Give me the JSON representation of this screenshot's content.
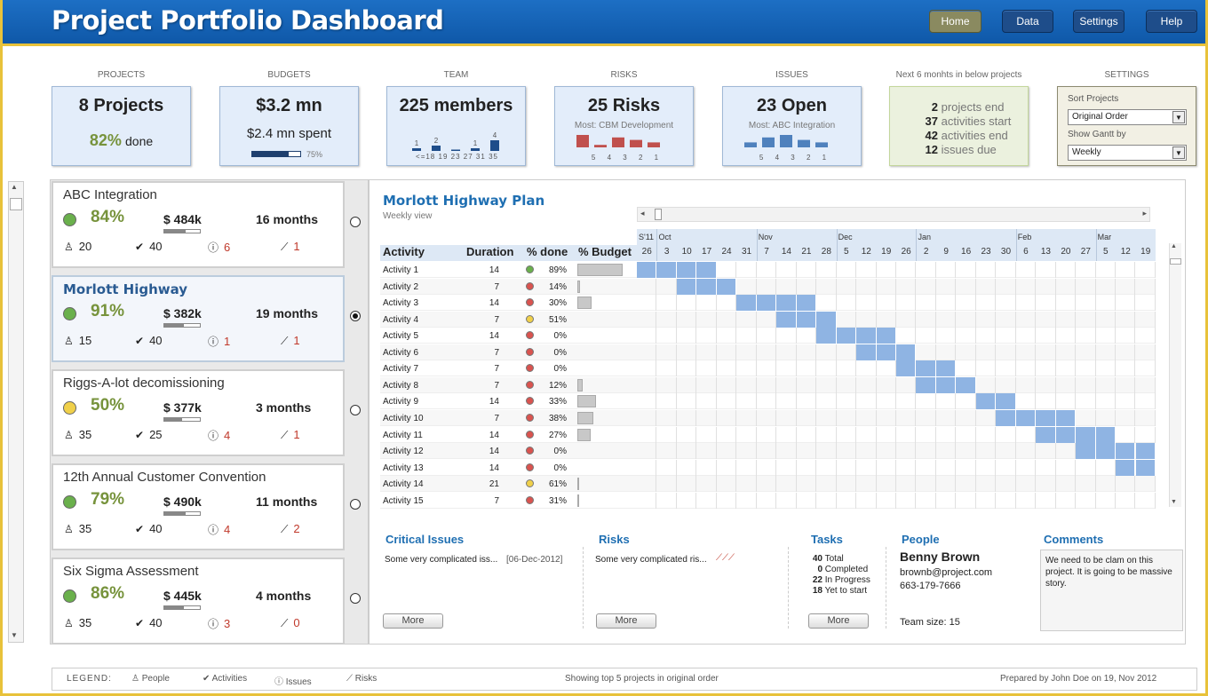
{
  "header": {
    "title": "Project Portfolio Dashboard",
    "nav": [
      "Home",
      "Data",
      "Settings",
      "Help"
    ]
  },
  "kpis": {
    "projects": {
      "label": "PROJECTS",
      "big": "8 Projects",
      "pct": "82%",
      "pct_suffix": "done"
    },
    "budgets": {
      "label": "BUDGETS",
      "big": "$3.2 mn",
      "sub": "$2.4 mn spent",
      "bar_pct": "75%",
      "bar_fraction": 0.75
    },
    "team": {
      "label": "TEAM",
      "big": "225 members",
      "bar_top": [
        "1",
        "2",
        "1",
        "4"
      ],
      "bar_bottom": [
        "<=18",
        "19",
        "23",
        "27",
        "31",
        "35"
      ],
      "values": [
        1,
        2,
        0,
        1,
        4
      ]
    },
    "risks": {
      "label": "RISKS",
      "big": "25 Risks",
      "most": "Most: CBM Development",
      "nums": [
        "5",
        "4",
        "3",
        "2",
        "1"
      ],
      "values": [
        5,
        1,
        4,
        3,
        2
      ]
    },
    "issues": {
      "label": "ISSUES",
      "big": "23 Open",
      "most": "Most: ABC Integration",
      "nums": [
        "5",
        "4",
        "3",
        "2",
        "1"
      ],
      "values": [
        2,
        4,
        5,
        3,
        2
      ]
    },
    "next": {
      "label": "Next 6 monhts in below projects",
      "lines": [
        {
          "n": "2",
          "t": "projects end"
        },
        {
          "n": "37",
          "t": "activities start"
        },
        {
          "n": "42",
          "t": "activities end"
        },
        {
          "n": "12",
          "t": "issues due"
        }
      ]
    },
    "settings": {
      "label": "SETTINGS",
      "sort_label": "Sort Projects",
      "sort_value": "Original Order",
      "gantt_label": "Show Gantt by",
      "gantt_value": "Weekly"
    }
  },
  "projects": [
    {
      "name": "ABC Integration",
      "status": "green",
      "pct": "84%",
      "budget": "$ 484k",
      "budget_fill": 0.6,
      "duration": "16 months",
      "people": "20",
      "activities": "40",
      "issues": "6",
      "risks": "1",
      "selected": false
    },
    {
      "name": "Morlott Highway",
      "status": "green",
      "pct": "91%",
      "budget": "$ 382k",
      "budget_fill": 0.55,
      "duration": "19 months",
      "people": "15",
      "activities": "40",
      "issues": "1",
      "risks": "1",
      "selected": true
    },
    {
      "name": "Riggs-A-lot decomissioning",
      "status": "yellow",
      "pct": "50%",
      "budget": "$ 377k",
      "budget_fill": 0.5,
      "duration": "3 months",
      "people": "35",
      "activities": "25",
      "issues": "4",
      "risks": "1",
      "selected": false
    },
    {
      "name": "12th Annual Customer Convention",
      "status": "green",
      "pct": "79%",
      "budget": "$ 490k",
      "budget_fill": 0.6,
      "duration": "11 months",
      "people": "35",
      "activities": "40",
      "issues": "4",
      "risks": "2",
      "selected": false
    },
    {
      "name": "Six Sigma Assessment",
      "status": "green",
      "pct": "86%",
      "budget": "$ 445k",
      "budget_fill": 0.55,
      "duration": "4 months",
      "people": "35",
      "activities": "40",
      "issues": "3",
      "risks": "0",
      "selected": false
    }
  ],
  "gantt": {
    "title": "Morlott Highway Plan",
    "subtitle": "Weekly view",
    "headers": {
      "activity": "Activity",
      "duration": "Duration",
      "done": "% done",
      "budget": "% Budget"
    },
    "months": [
      {
        "label": "S'11",
        "col": 0
      },
      {
        "label": "Oct",
        "col": 1
      },
      {
        "label": "Nov",
        "col": 6
      },
      {
        "label": "Dec",
        "col": 10
      },
      {
        "label": "Jan",
        "col": 14
      },
      {
        "label": "Feb",
        "col": 19
      },
      {
        "label": "Mar",
        "col": 23
      }
    ],
    "weeks": [
      "26",
      "3",
      "10",
      "17",
      "24",
      "31",
      "7",
      "14",
      "21",
      "28",
      "5",
      "12",
      "19",
      "26",
      "2",
      "9",
      "16",
      "23",
      "30",
      "6",
      "13",
      "20",
      "27",
      "5",
      "12",
      "19"
    ],
    "activities": [
      {
        "name": "Activity 1",
        "dur": "14",
        "status": "green",
        "done": "89%",
        "budget": 0.95,
        "start": 0,
        "len": 4
      },
      {
        "name": "Activity 2",
        "dur": "7",
        "status": "red",
        "done": "14%",
        "budget": 0.05,
        "start": 2,
        "len": 3
      },
      {
        "name": "Activity 3",
        "dur": "14",
        "status": "red",
        "done": "30%",
        "budget": 0.3,
        "start": 5,
        "len": 4
      },
      {
        "name": "Activity 4",
        "dur": "7",
        "status": "yellow",
        "done": "51%",
        "budget": 0,
        "start": 7,
        "len": 3
      },
      {
        "name": "Activity 5",
        "dur": "14",
        "status": "red",
        "done": "0%",
        "budget": 0,
        "start": 9,
        "len": 4
      },
      {
        "name": "Activity 6",
        "dur": "7",
        "status": "red",
        "done": "0%",
        "budget": 0,
        "start": 11,
        "len": 3
      },
      {
        "name": "Activity 7",
        "dur": "7",
        "status": "red",
        "done": "0%",
        "budget": 0,
        "start": 13,
        "len": 3
      },
      {
        "name": "Activity 8",
        "dur": "7",
        "status": "red",
        "done": "12%",
        "budget": 0.12,
        "start": 14,
        "len": 3
      },
      {
        "name": "Activity 9",
        "dur": "14",
        "status": "red",
        "done": "33%",
        "budget": 0.38,
        "start": 17,
        "len": 2
      },
      {
        "name": "Activity 10",
        "dur": "7",
        "status": "red",
        "done": "38%",
        "budget": 0.33,
        "start": 18,
        "len": 4
      },
      {
        "name": "Activity 11",
        "dur": "14",
        "status": "red",
        "done": "27%",
        "budget": 0.27,
        "start": 20,
        "len": 4
      },
      {
        "name": "Activity 12",
        "dur": "14",
        "status": "red",
        "done": "0%",
        "budget": 0,
        "start": 22,
        "len": 4
      },
      {
        "name": "Activity 13",
        "dur": "14",
        "status": "red",
        "done": "0%",
        "budget": 0,
        "start": 24,
        "len": 2
      },
      {
        "name": "Activity 14",
        "dur": "21",
        "status": "yellow",
        "done": "61%",
        "budget": 0.03,
        "start": 26,
        "len": 0
      },
      {
        "name": "Activity 15",
        "dur": "7",
        "status": "red",
        "done": "31%",
        "budget": 0.03,
        "start": 26,
        "len": 0
      }
    ]
  },
  "bottom": {
    "critical": {
      "title": "Critical Issues",
      "text": "Some very complicated iss...",
      "date": "[06-Dec-2012]",
      "more": "More"
    },
    "risks": {
      "title": "Risks",
      "text": "Some very complicated ris...",
      "more": "More"
    },
    "tasks": {
      "title": "Tasks",
      "rows": [
        {
          "n": "40",
          "t": "Total"
        },
        {
          "n": "0",
          "t": "Completed"
        },
        {
          "n": "22",
          "t": "In Progress"
        },
        {
          "n": "18",
          "t": "Yet to start"
        }
      ],
      "more": "More"
    },
    "people": {
      "title": "People",
      "name": "Benny Brown",
      "email": "brownb@project.com",
      "phone": "663-179-7666",
      "team": "Team size: 15"
    },
    "comments": {
      "title": "Comments",
      "text": "We need to be clam on this project. It is going to be massive story."
    }
  },
  "footer": {
    "legend": "LEGEND:",
    "people": "People",
    "activities": "Activities",
    "issues": "Issues",
    "risks": "Risks",
    "showing": "Showing top 5 projects in original order",
    "prepared": "Prepared by John Doe on 19, Nov 2012"
  },
  "colors": {
    "green": "#6ab04c",
    "red": "#d9534f",
    "yellow": "#f0d04a",
    "bar": "#8fb4e3",
    "accent": "#1f6fb2"
  }
}
